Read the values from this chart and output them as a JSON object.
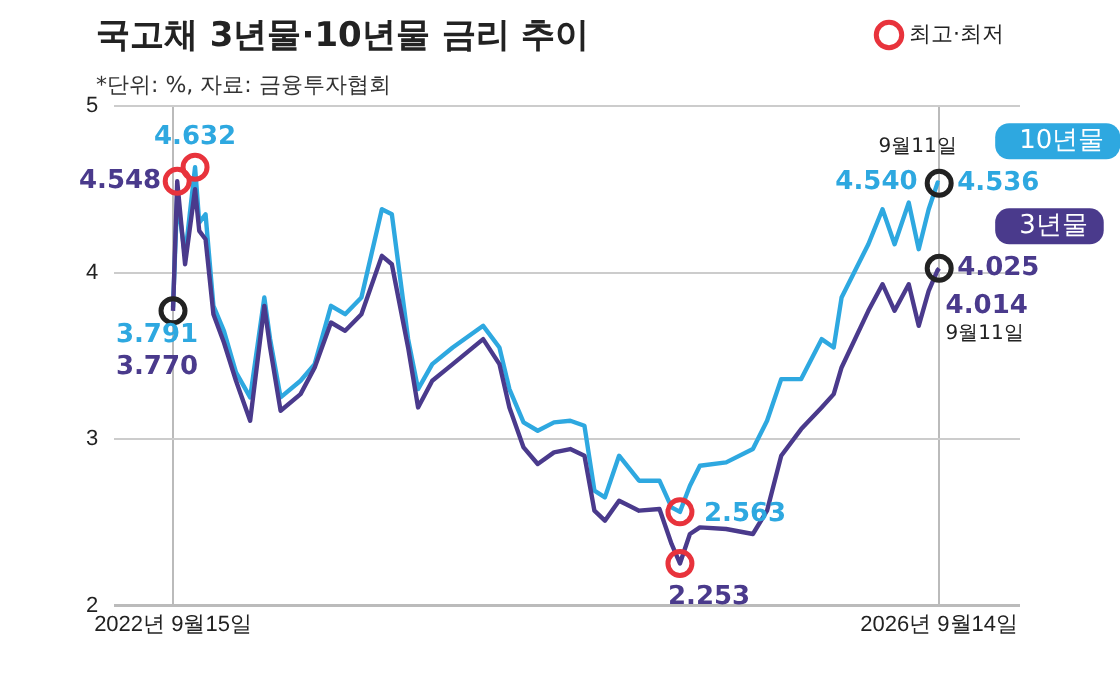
{
  "chart_data": {
    "type": "line",
    "title": "국고채 3년물·10년물 금리 추이",
    "subtitle": "*단위: %, 자료: 금융투자협회",
    "x": [
      "2022-09-15",
      "2022-09-23",
      "2022-10-08",
      "2022-10-27",
      "2022-11-04",
      "2022-11-16",
      "2022-12-01",
      "2022-12-21",
      "2023-01-13",
      "2023-02-09",
      "2023-03-08",
      "2023-03-19",
      "2023-04-08",
      "2023-05-16",
      "2023-06-12",
      "2023-07-13",
      "2023-08-09",
      "2023-09-09",
      "2023-10-18",
      "2023-11-06",
      "2023-12-07",
      "2023-12-26",
      "2024-01-22",
      "2024-03-01",
      "2024-04-28",
      "2024-05-29",
      "2024-06-17",
      "2024-07-14",
      "2024-08-10",
      "2024-09-10",
      "2024-10-11",
      "2024-11-07",
      "2024-11-26",
      "2024-12-16",
      "2025-01-12",
      "2025-02-19",
      "2025-03-30",
      "2025-04-22",
      "2025-05-08",
      "2025-05-27",
      "2025-06-15",
      "2025-08-04",
      "2025-09-24",
      "2025-10-21",
      "2025-11-17",
      "2025-12-25",
      "2026-02-02",
      "2026-02-25",
      "2026-03-12",
      "2026-05-02",
      "2026-05-29",
      "2026-06-21",
      "2026-07-18",
      "2026-08-06",
      "2026-08-25",
      "2026-09-11",
      "2026-09-14"
    ],
    "series": [
      {
        "name": "10년물",
        "color": "#2ea8e0",
        "values": [
          3.791,
          4.45,
          4.1,
          4.632,
          4.3,
          4.35,
          3.8,
          3.65,
          3.4,
          3.25,
          3.85,
          3.6,
          3.25,
          3.35,
          3.45,
          3.8,
          3.75,
          3.85,
          4.38,
          4.35,
          3.6,
          3.3,
          3.45,
          3.55,
          3.68,
          3.55,
          3.3,
          3.1,
          3.05,
          3.1,
          3.11,
          3.08,
          2.69,
          2.65,
          2.9,
          2.75,
          2.75,
          2.59,
          2.563,
          2.72,
          2.84,
          2.86,
          2.94,
          3.11,
          3.36,
          3.36,
          3.6,
          3.55,
          3.85,
          4.17,
          4.38,
          4.17,
          4.42,
          4.14,
          4.38,
          4.54,
          4.536
        ]
      },
      {
        "name": "3년물",
        "color": "#4a3a8c",
        "values": [
          3.77,
          4.548,
          4.05,
          4.5,
          4.25,
          4.2,
          3.75,
          3.58,
          3.35,
          3.11,
          3.8,
          3.55,
          3.17,
          3.27,
          3.43,
          3.7,
          3.65,
          3.75,
          4.1,
          4.05,
          3.55,
          3.19,
          3.35,
          3.45,
          3.6,
          3.45,
          3.19,
          2.95,
          2.85,
          2.92,
          2.94,
          2.9,
          2.57,
          2.51,
          2.63,
          2.57,
          2.58,
          2.37,
          2.253,
          2.43,
          2.47,
          2.46,
          2.43,
          2.57,
          2.9,
          3.06,
          3.19,
          3.27,
          3.43,
          3.77,
          3.93,
          3.77,
          3.93,
          3.68,
          3.89,
          4.014,
          4.025
        ]
      },
      {
        "name": "최고·최저",
        "type": "scatter",
        "color": "#e8333c",
        "x": [
          "2022-09-23",
          "2022-10-27",
          "2025-05-08",
          "2025-05-08"
        ],
        "values": [
          4.548,
          4.632,
          2.563,
          2.253
        ]
      },
      {
        "type": "scatter",
        "color": "#222222",
        "x": [
          "2022-09-15",
          "2026-09-14",
          "2026-09-14"
        ],
        "values": [
          3.77,
          4.536,
          4.025
        ]
      }
    ],
    "xlim": [
      "2022-05-26",
      "2027-02-15"
    ],
    "xticks": [
      {
        "value": "2022-09-15",
        "label": "2022년 9월15일"
      },
      {
        "value": "2026-09-14",
        "label": "2026년 9월14일"
      }
    ],
    "ylim": [
      2,
      5
    ],
    "yticks": [
      2,
      3,
      4,
      5
    ],
    "grid": true,
    "legend": "top right",
    "annotations": [
      {
        "text": "4.548",
        "x": "2022-09-23",
        "y": 4.548
      },
      {
        "text": "4.632",
        "x": "2022-10-27",
        "y": 4.632
      },
      {
        "text": "3.791",
        "x": "2022-09-15",
        "y": 3.791
      },
      {
        "text": "3.770",
        "x": "2022-09-15",
        "y": 3.77
      },
      {
        "text": "2.563",
        "x": "2025-05-08",
        "y": 2.563
      },
      {
        "text": "2.253",
        "x": "2025-05-08",
        "y": 2.253
      },
      {
        "text": "4.540",
        "x": "2026-09-11",
        "y": 4.54
      },
      {
        "text": "4.536",
        "x": "2026-09-14",
        "y": 4.536
      },
      {
        "text": "9월11일",
        "x": "2026-09-11",
        "y": 4.54
      },
      {
        "text": "4.025",
        "x": "2026-09-14",
        "y": 4.025
      },
      {
        "text": "4.014",
        "x": "2026-09-11",
        "y": 4.014
      },
      {
        "text": "9월11일",
        "x": "2026-09-11",
        "y": 4.014
      }
    ]
  }
}
